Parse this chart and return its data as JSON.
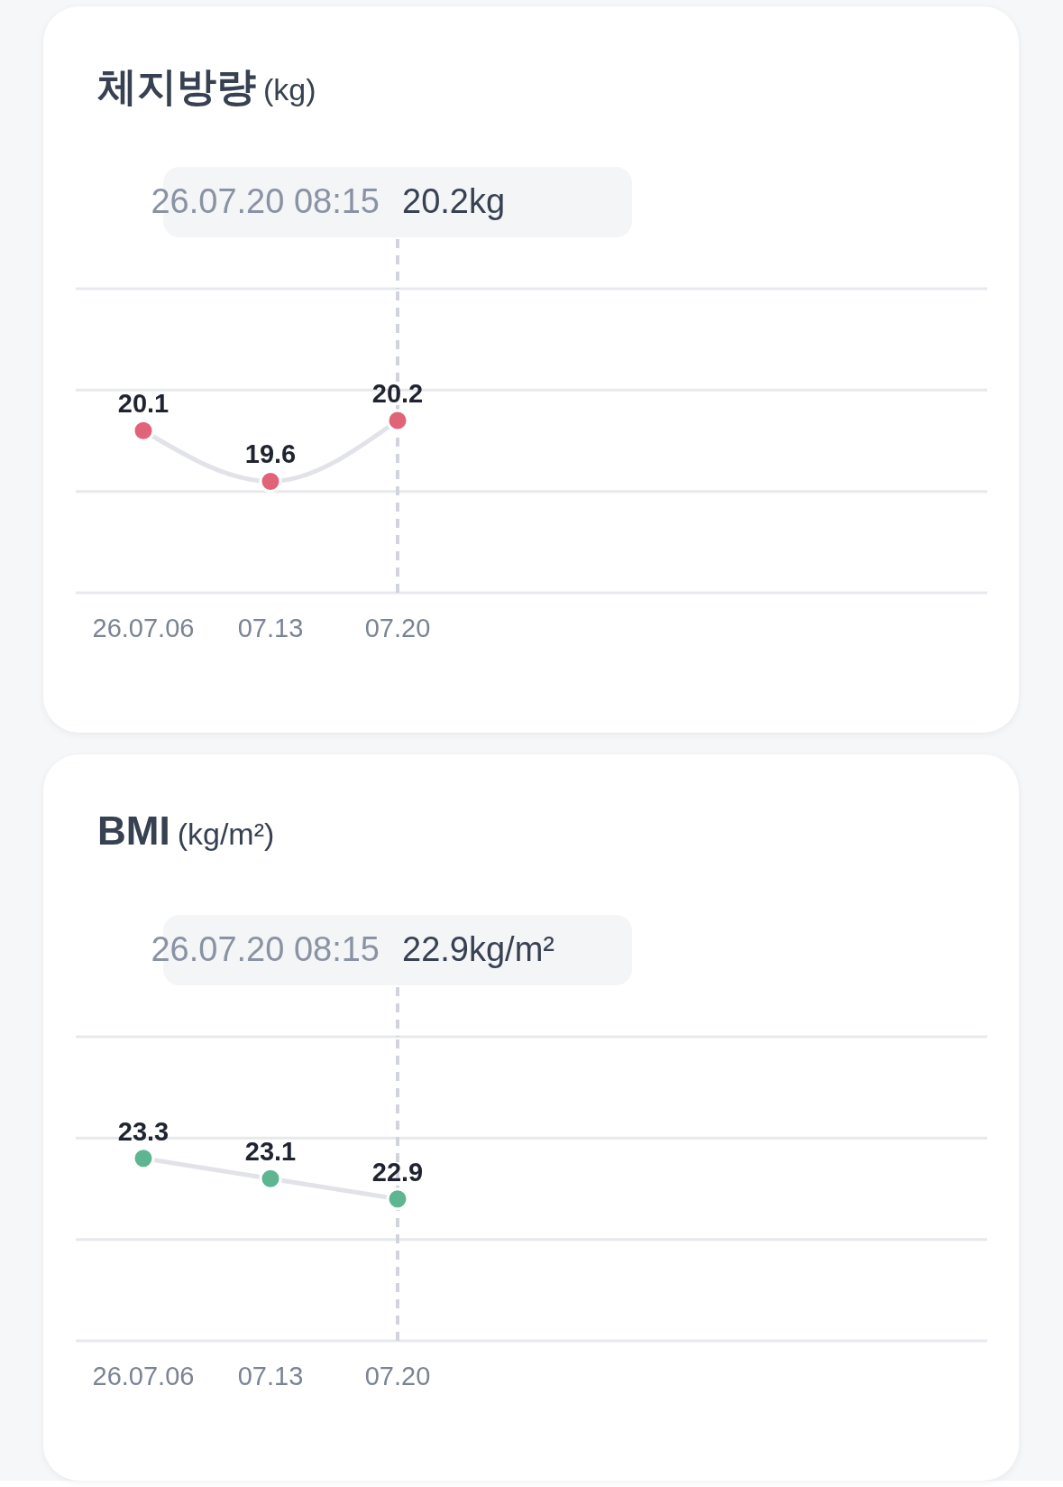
{
  "chart_data": [
    {
      "type": "line",
      "title": "체지방량",
      "subtitle": "(kg)",
      "categories": [
        "26.07.06",
        "07.13",
        "07.20",
        null,
        null,
        null,
        null
      ],
      "series": [
        {
          "color": "#e06377",
          "values": [
            20.1,
            19.6,
            20.2,
            null,
            null,
            null,
            null
          ]
        }
      ],
      "ylim": [
        18.5,
        21.5
      ],
      "yticks": [
        {
          "value": 18.5,
          "label": null
        },
        {
          "value": 19.5,
          "label": null
        },
        {
          "value": 20.5,
          "label": null
        },
        {
          "value": 21.5,
          "label": null
        }
      ],
      "grid": "y",
      "tick_labels": "x",
      "marker": "circle",
      "line_style": "solid",
      "data_labels": true,
      "legend": false,
      "ref_lines": [
        {
          "axis": "x",
          "value": "07.20",
          "line_style": "dashed",
          "color": "#d1d5db"
        }
      ],
      "annotations": [
        "26.07.20 08:15",
        "20.2kg"
      ]
    },
    {
      "type": "line",
      "title": "BMI",
      "subtitle": "(kg/m²)",
      "categories": [
        "26.07.06",
        "07.13",
        "07.20",
        null,
        null,
        null,
        null
      ],
      "series": [
        {
          "color": "#5fb592",
          "values": [
            23.3,
            23.1,
            22.9,
            null,
            null,
            null,
            null
          ]
        }
      ],
      "ylim": [
        21.5,
        24.5
      ],
      "yticks": [
        {
          "value": 21.5,
          "label": null
        },
        {
          "value": 22.5,
          "label": null
        },
        {
          "value": 23.5,
          "label": null
        },
        {
          "value": 24.5,
          "label": null
        }
      ],
      "grid": "y",
      "tick_labels": "x",
      "marker": "circle",
      "line_style": "solid",
      "data_labels": true,
      "legend": false,
      "ref_lines": [
        {
          "axis": "x",
          "value": "07.20",
          "line_style": "dashed",
          "color": "#d1d5db"
        }
      ],
      "annotations": [
        "26.07.20 08:15",
        "22.9kg/m²"
      ]
    }
  ]
}
